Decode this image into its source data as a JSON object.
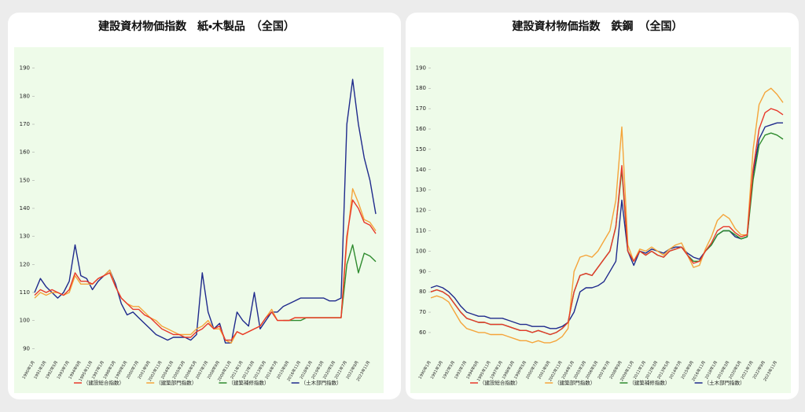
{
  "chart_data": [
    {
      "type": "line",
      "title": "建設資材物価指数　紙・木製品　（全国）",
      "categories": [
        "1990年1月",
        null,
        "1991年3月",
        null,
        "1992年5月",
        null,
        "1993年7月",
        null,
        "1994年9月",
        null,
        "1995年11月",
        null,
        "1997年1月",
        null,
        "1998年3月",
        null,
        "1999年5月",
        null,
        "2000年7月",
        null,
        "2001年9月",
        null,
        "2002年11月",
        null,
        "2004年1月",
        null,
        "2005年3月",
        null,
        "2006年5月",
        null,
        "2007年7月",
        null,
        "2008年9月",
        null,
        "2009年11月",
        null,
        "2011年1月",
        null,
        "2012年3月",
        null,
        "2013年5月",
        null,
        "2014年7月",
        null,
        "2015年9月",
        null,
        "2016年11月",
        null,
        "2018年1月",
        null,
        "2019年3月",
        null,
        "2020年5月",
        null,
        "2021年7月",
        null,
        "2022年9月",
        null,
        "2023年11月",
        null
      ],
      "series": [
        {
          "name": "（建設総合指数）",
          "color": "#e8382a",
          "values": [
            109,
            111,
            110,
            111,
            110,
            109,
            111,
            117,
            114,
            114,
            113,
            115,
            116,
            117,
            112,
            108,
            106,
            104,
            104,
            102,
            101,
            99,
            97,
            96,
            95,
            95,
            94,
            94,
            96,
            97,
            99,
            97,
            98,
            93,
            93,
            96,
            95,
            96,
            97,
            98,
            101,
            103,
            100,
            100,
            100,
            101,
            101,
            101,
            101,
            101,
            101,
            101,
            101,
            101,
            130,
            143,
            140,
            135,
            134,
            131
          ]
        },
        {
          "name": "（建築部門指数）",
          "color": "#f5a43a",
          "values": [
            108,
            110,
            109,
            110,
            110,
            109,
            110,
            116,
            113,
            113,
            113,
            115,
            116,
            118,
            112,
            108,
            106,
            105,
            105,
            103,
            101,
            100,
            98,
            97,
            96,
            95,
            95,
            95,
            97,
            98,
            100,
            97,
            97,
            93,
            92,
            96,
            95,
            96,
            97,
            98,
            101,
            104,
            100,
            100,
            100,
            101,
            101,
            101,
            101,
            101,
            101,
            101,
            101,
            101,
            128,
            147,
            142,
            136,
            135,
            132
          ]
        },
        {
          "name": "（建築補修指数）",
          "color": "#2e8b2e",
          "values": [
            null,
            null,
            null,
            null,
            null,
            null,
            null,
            null,
            null,
            null,
            null,
            null,
            null,
            null,
            null,
            null,
            null,
            null,
            null,
            null,
            null,
            null,
            null,
            null,
            null,
            null,
            null,
            null,
            null,
            null,
            null,
            null,
            null,
            null,
            null,
            null,
            null,
            null,
            null,
            null,
            null,
            null,
            null,
            100,
            100,
            100,
            100,
            101,
            101,
            101,
            101,
            101,
            101,
            101,
            120,
            127,
            117,
            124,
            123,
            121
          ]
        },
        {
          "name": "（土木部門指数）",
          "color": "#1f2a8c",
          "values": [
            110,
            115,
            112,
            110,
            108,
            110,
            114,
            127,
            116,
            115,
            111,
            114,
            116,
            118,
            113,
            106,
            102,
            103,
            101,
            99,
            97,
            95,
            94,
            93,
            94,
            94,
            94,
            93,
            95,
            117,
            103,
            97,
            99,
            92,
            92,
            103,
            100,
            98,
            110,
            97,
            100,
            103,
            103,
            105,
            106,
            107,
            108,
            108,
            108,
            108,
            108,
            107,
            107,
            108,
            170,
            186,
            170,
            158,
            150,
            138
          ]
        }
      ],
      "ylim": [
        87,
        193
      ],
      "yticks": [
        90,
        100,
        110,
        120,
        130,
        140,
        150,
        160,
        170,
        180,
        190
      ],
      "legend": "bottom"
    },
    {
      "type": "line",
      "title": "建設資材物価指数　鉄鋼　（全国）",
      "categories": [
        "1990年1月",
        null,
        "1991年3月",
        null,
        "1992年5月",
        null,
        "1993年7月",
        null,
        "1994年9月",
        null,
        "1995年11月",
        null,
        "1997年1月",
        null,
        "1998年3月",
        null,
        "1999年5月",
        null,
        "2000年7月",
        null,
        "2001年9月",
        null,
        "2002年11月",
        null,
        "2004年1月",
        null,
        "2005年3月",
        null,
        "2006年5月",
        null,
        "2007年7月",
        null,
        "2008年9月",
        null,
        "2009年11月",
        null,
        "2011年1月",
        null,
        "2012年3月",
        null,
        "2013年5月",
        null,
        "2014年7月",
        null,
        "2015年9月",
        null,
        "2016年11月",
        null,
        "2018年1月",
        null,
        "2019年3月",
        null,
        "2020年5月",
        null,
        "2021年7月",
        null,
        "2022年9月",
        null,
        "2023年11月",
        null
      ],
      "series": [
        {
          "name": "（建設総合指数）",
          "color": "#e8382a",
          "values": [
            80,
            81,
            80,
            78,
            74,
            70,
            67,
            66,
            65,
            65,
            64,
            64,
            64,
            63,
            62,
            61,
            61,
            60,
            61,
            60,
            59,
            60,
            62,
            65,
            80,
            88,
            89,
            88,
            92,
            96,
            100,
            112,
            142,
            100,
            95,
            100,
            98,
            100,
            98,
            97,
            100,
            101,
            102,
            98,
            94,
            95,
            100,
            104,
            110,
            112,
            112,
            109,
            107,
            108,
            140,
            160,
            168,
            170,
            169,
            167
          ]
        },
        {
          "name": "（建築部門指数）",
          "color": "#f5a43a",
          "values": [
            77,
            78,
            77,
            75,
            70,
            65,
            62,
            61,
            60,
            60,
            59,
            59,
            59,
            58,
            57,
            56,
            56,
            55,
            56,
            55,
            55,
            56,
            58,
            62,
            90,
            97,
            98,
            97,
            100,
            105,
            110,
            125,
            161,
            103,
            95,
            101,
            100,
            102,
            100,
            98,
            101,
            103,
            104,
            98,
            92,
            93,
            101,
            107,
            115,
            118,
            116,
            111,
            108,
            108,
            150,
            172,
            178,
            180,
            177,
            173
          ]
        },
        {
          "name": "（建築補修指数）",
          "color": "#2e8b2e",
          "values": [
            80,
            81,
            80,
            78,
            74,
            70,
            67,
            66,
            65,
            65,
            64,
            64,
            64,
            63,
            62,
            61,
            61,
            60,
            61,
            60,
            59,
            60,
            62,
            65,
            80,
            88,
            89,
            88,
            92,
            96,
            100,
            112,
            140,
            100,
            95,
            100,
            98,
            100,
            98,
            97,
            100,
            101,
            102,
            98,
            95,
            95,
            100,
            103,
            108,
            110,
            110,
            108,
            106,
            107,
            135,
            152,
            157,
            158,
            157,
            155
          ]
        },
        {
          "name": "（土木部門指数）",
          "color": "#1f2a8c",
          "values": [
            82,
            83,
            82,
            80,
            77,
            73,
            70,
            69,
            68,
            68,
            67,
            67,
            67,
            66,
            65,
            64,
            64,
            63,
            63,
            63,
            62,
            62,
            63,
            65,
            70,
            80,
            82,
            82,
            83,
            85,
            90,
            95,
            125,
            100,
            93,
            100,
            99,
            101,
            100,
            99,
            101,
            102,
            102,
            99,
            97,
            96,
            100,
            103,
            108,
            110,
            110,
            107,
            106,
            107,
            138,
            155,
            161,
            162,
            163,
            163
          ]
        }
      ],
      "ylim": [
        48,
        194
      ],
      "yticks": [
        60,
        70,
        80,
        90,
        100,
        110,
        120,
        130,
        140,
        150,
        160,
        170,
        180,
        190
      ],
      "legend": "bottom"
    }
  ]
}
